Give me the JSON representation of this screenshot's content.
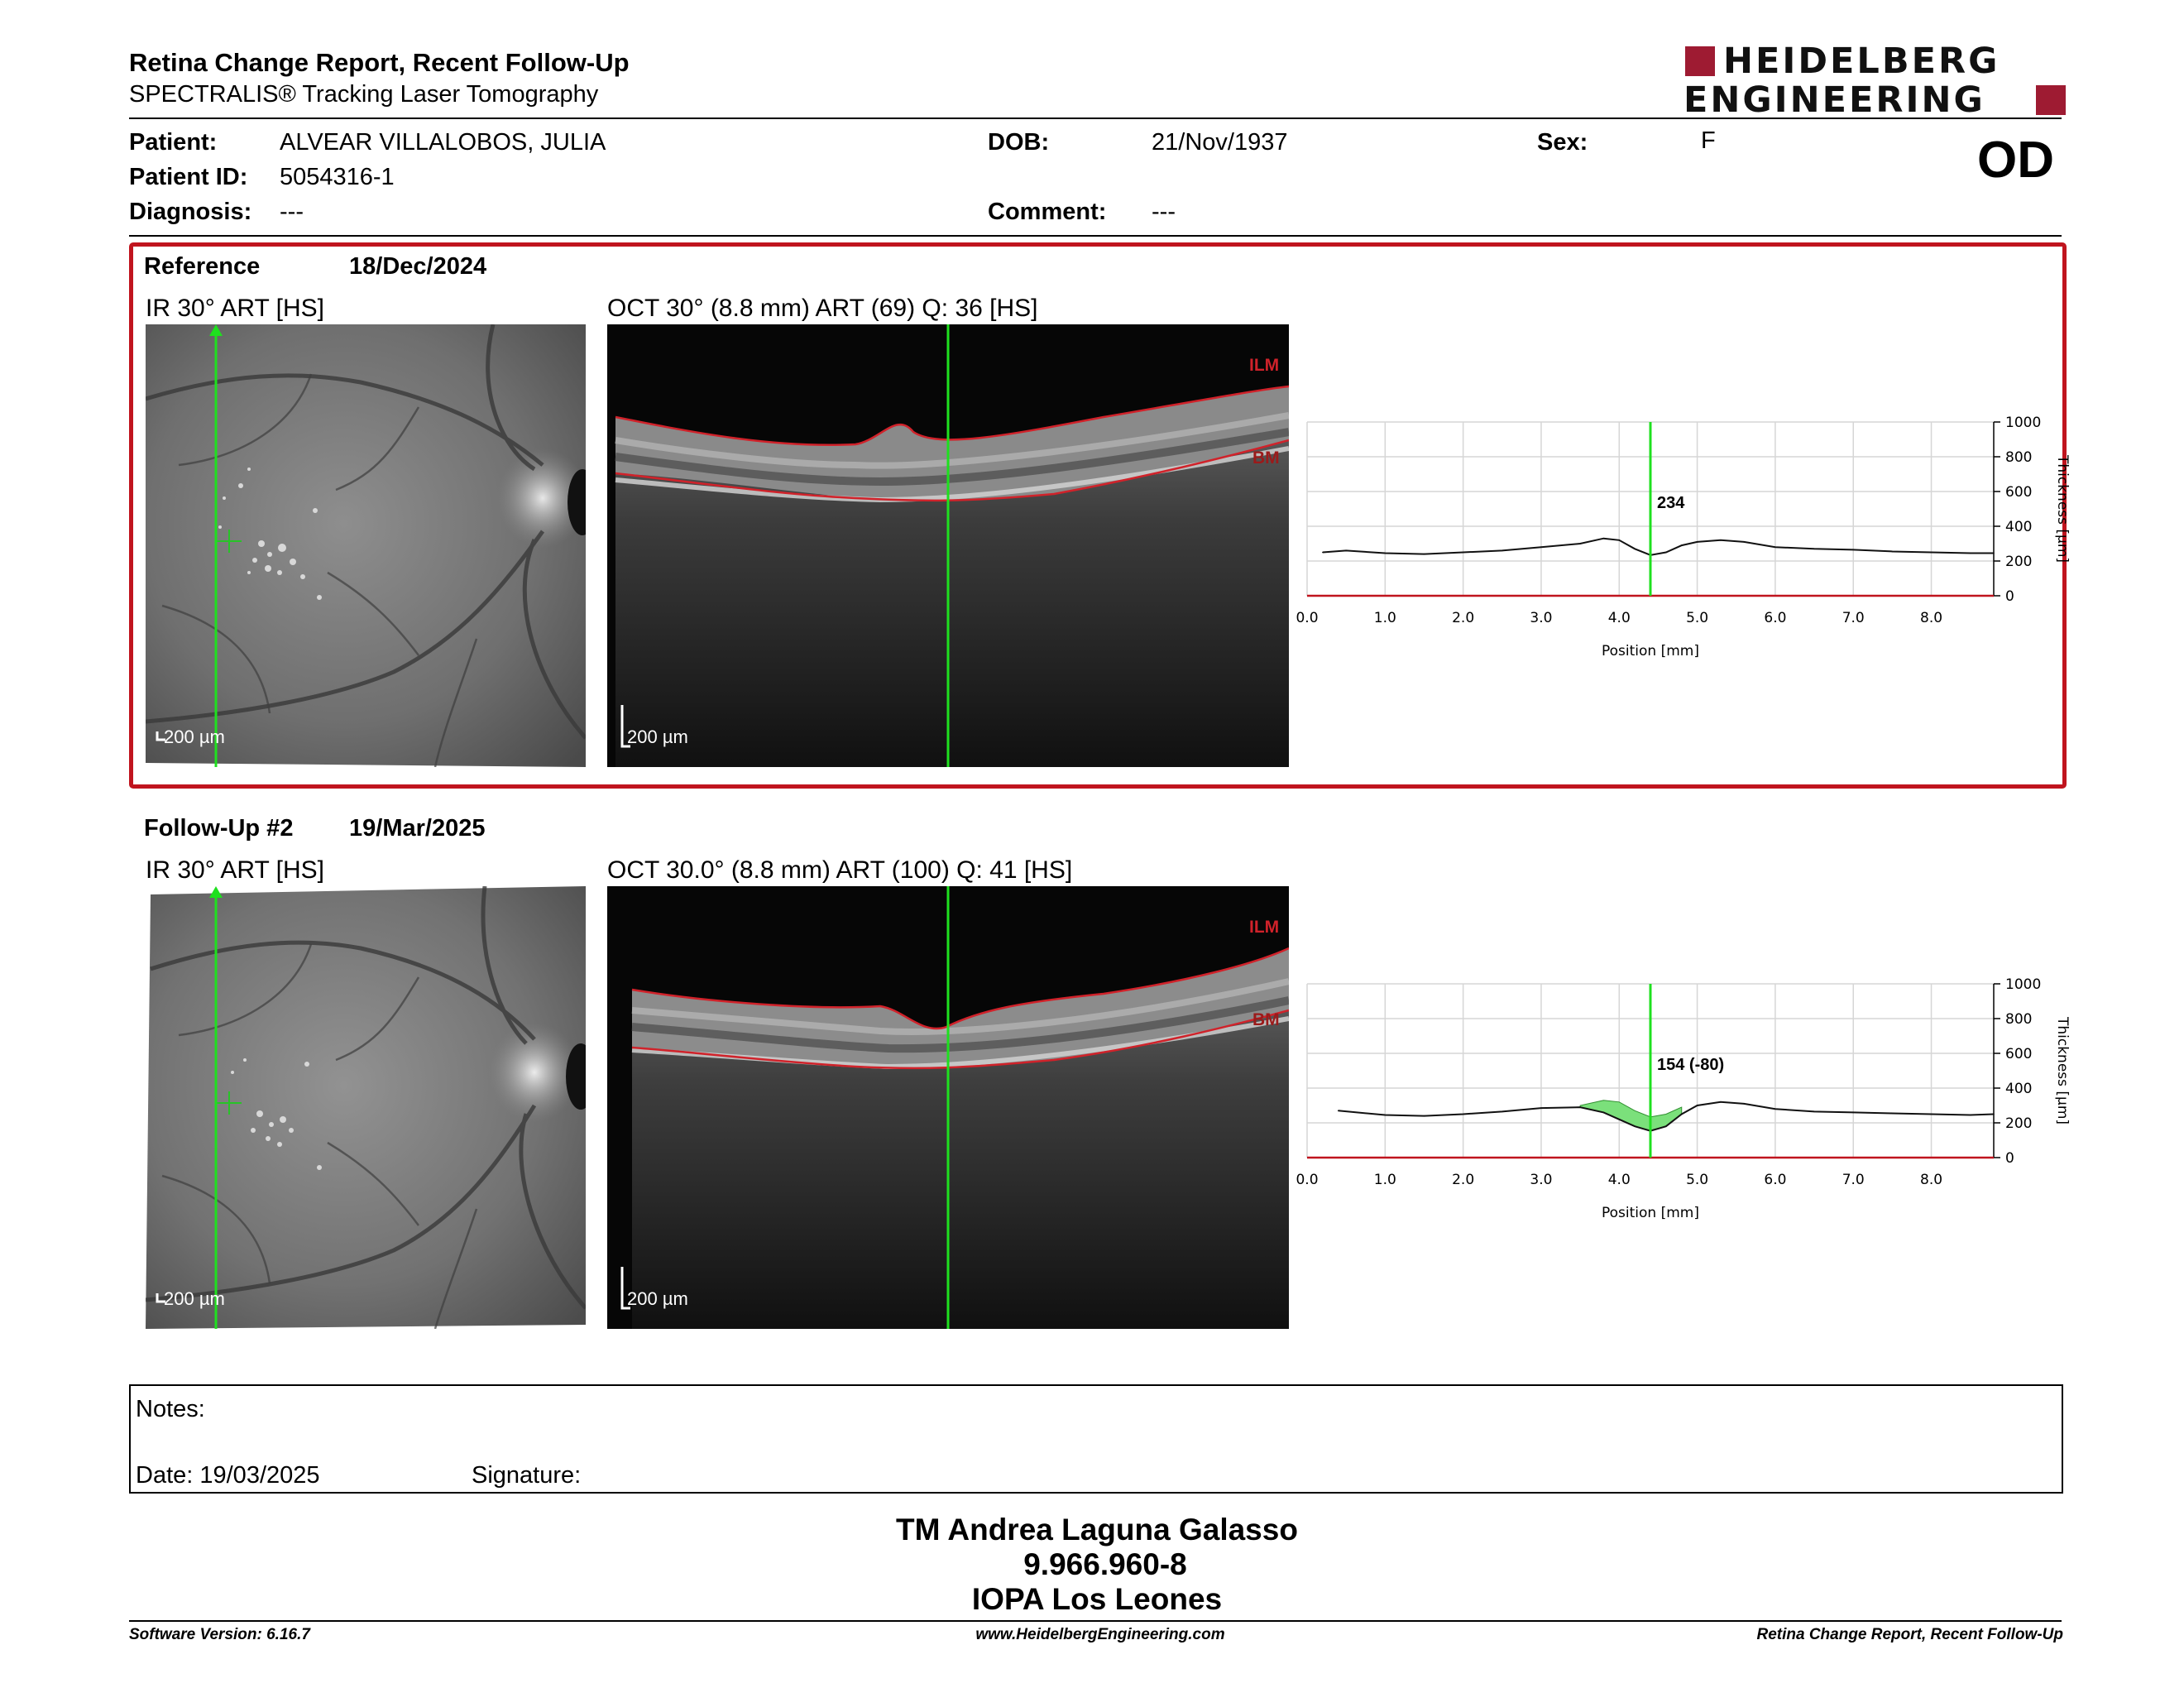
{
  "header": {
    "title": "Retina Change Report, Recent Follow-Up",
    "subtitle": "SPECTRALIS® Tracking Laser Tomography",
    "logo_line1": "HEIDELBERG",
    "logo_line2": "ENGINEERING",
    "brand_color": "#9e1b32"
  },
  "patient": {
    "patient_label": "Patient:",
    "patient_value": "ALVEAR VILLALOBOS, JULIA",
    "id_label": "Patient ID:",
    "id_value": "5054316-1",
    "diagnosis_label": "Diagnosis:",
    "diagnosis_value": "---",
    "dob_label": "DOB:",
    "dob_value": "21/Nov/1937",
    "comment_label": "Comment:",
    "comment_value": "---",
    "sex_label": "Sex:",
    "sex_value": "F",
    "eye": "OD"
  },
  "reference": {
    "label": "Reference",
    "date": "18/Dec/2024",
    "ir_label": "IR 30° ART [HS]",
    "oct_label": "OCT 30° (8.8 mm) ART (69) Q: 36 [HS]",
    "ir_scale": "200 µm",
    "oct_scale": "200 µm",
    "ilm": "ILM",
    "bm": "BM",
    "frame_color": "#c0141e"
  },
  "followup": {
    "label": "Follow-Up #2",
    "date": "19/Mar/2025",
    "ir_label": "IR 30° ART [HS]",
    "oct_label": "OCT 30.0° (8.8 mm) ART (100) Q: 41 [HS]",
    "ir_scale": "200 µm",
    "oct_scale": "200 µm",
    "ilm": "ILM",
    "bm": "BM"
  },
  "chart_data": [
    {
      "type": "line",
      "xlabel": "Position [mm]",
      "ylabel": "Thickness [µm]",
      "xlim": [
        0.0,
        8.8
      ],
      "ylim": [
        0,
        1000
      ],
      "xticks": [
        "0.0",
        "1.0",
        "2.0",
        "3.0",
        "4.0",
        "5.0",
        "6.0",
        "7.0",
        "8.0"
      ],
      "yticks": [
        "0",
        "200",
        "400",
        "600",
        "800",
        "1000"
      ],
      "cursor_x": 4.4,
      "cursor_label": "234",
      "grid": true,
      "series": [
        {
          "x": [
            0.2,
            0.5,
            1.0,
            1.5,
            2.0,
            2.5,
            3.0,
            3.5,
            3.8,
            4.0,
            4.2,
            4.4,
            4.6,
            4.8,
            5.0,
            5.3,
            5.6,
            6.0,
            6.5,
            7.0,
            7.5,
            8.0,
            8.5,
            8.8
          ],
          "y": [
            250,
            260,
            245,
            240,
            250,
            260,
            280,
            300,
            330,
            320,
            270,
            234,
            250,
            290,
            310,
            320,
            310,
            280,
            270,
            265,
            255,
            250,
            245,
            245
          ]
        }
      ]
    },
    {
      "type": "area",
      "xlabel": "Position [mm]",
      "ylabel": "Thickness [µm]",
      "xlim": [
        0.0,
        8.8
      ],
      "ylim": [
        0,
        1000
      ],
      "xticks": [
        "0.0",
        "1.0",
        "2.0",
        "3.0",
        "4.0",
        "5.0",
        "6.0",
        "7.0",
        "8.0"
      ],
      "yticks": [
        "0",
        "200",
        "400",
        "600",
        "800",
        "1000"
      ],
      "cursor_x": 4.4,
      "cursor_label": "154 (-80)",
      "grid": true,
      "series": [
        {
          "x": [
            0.4,
            1.0,
            1.5,
            2.0,
            2.5,
            3.0,
            3.5,
            3.8,
            4.0,
            4.2,
            4.4,
            4.6,
            4.8,
            5.0,
            5.3,
            5.6,
            6.0,
            6.5,
            7.0,
            7.5,
            8.0,
            8.5,
            8.8
          ],
          "y": [
            270,
            245,
            240,
            250,
            265,
            285,
            290,
            260,
            220,
            180,
            154,
            180,
            250,
            300,
            320,
            310,
            280,
            265,
            260,
            255,
            250,
            245,
            250
          ]
        }
      ],
      "fill_color": "#7be07b"
    }
  ],
  "notes": {
    "notes_label": "Notes:",
    "date_label": "Date: 19/03/2025",
    "signature_label": "Signature:"
  },
  "signer": {
    "name": "TM Andrea Laguna Galasso",
    "id": "9.966.960-8",
    "org": "IOPA Los Leones"
  },
  "footer": {
    "software": "Software Version: 6.16.7",
    "website": "www.HeidelbergEngineering.com",
    "report": "Retina Change Report, Recent Follow-Up"
  }
}
